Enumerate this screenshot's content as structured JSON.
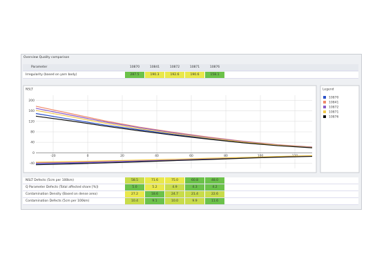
{
  "window": {
    "title": "Overview Quality comparison"
  },
  "top_table": {
    "header": [
      "Parameter",
      "10870",
      "10841",
      "10872",
      "10871",
      "10876"
    ],
    "rows": [
      {
        "label": "Irregularity (based on yarn body)",
        "cells": [
          "287.5",
          "190.3",
          "192.6",
          "190.6",
          "158.1"
        ],
        "colors": [
          "#6cc24a",
          "#e9e84c",
          "#e9e84c",
          "#e9e84c",
          "#6cc24a"
        ]
      }
    ]
  },
  "chart": {
    "type": "line",
    "title": "NSLT",
    "legend_title": "Legend",
    "x": [
      -30,
      -10,
      10,
      30,
      50,
      70,
      90,
      110,
      130
    ],
    "xlim": [
      -30,
      130
    ],
    "xticks": [
      -20,
      0,
      20,
      40,
      60,
      80,
      100,
      120
    ],
    "ylim": [
      -60,
      220
    ],
    "yticks": [
      -40,
      0,
      40,
      80,
      120,
      160,
      200
    ],
    "grid": true,
    "series": [
      {
        "name": "10870",
        "color": "#2a50c8",
        "upper": [
          150,
          128,
          106,
          88,
          70,
          54,
          40,
          28,
          20
        ],
        "lower": [
          -42,
          -40,
          -36,
          -32,
          -28,
          -24,
          -20,
          -16,
          -13
        ]
      },
      {
        "name": "10841",
        "color": "#f08a6a",
        "upper": [
          178,
          150,
          122,
          98,
          78,
          60,
          44,
          31,
          22
        ],
        "lower": [
          -38,
          -36,
          -33,
          -30,
          -26,
          -22,
          -19,
          -15,
          -12
        ]
      },
      {
        "name": "10872",
        "color": "#8a5cc8",
        "upper": [
          170,
          144,
          118,
          96,
          76,
          58,
          43,
          30,
          21
        ],
        "lower": [
          -40,
          -38,
          -35,
          -31,
          -27,
          -23,
          -19,
          -16,
          -12
        ]
      },
      {
        "name": "10871",
        "color": "#f2c84a",
        "upper": [
          162,
          138,
          113,
          92,
          73,
          56,
          41,
          29,
          20
        ],
        "lower": [
          -36,
          -34,
          -31,
          -28,
          -25,
          -21,
          -18,
          -14,
          -11
        ]
      },
      {
        "name": "10876",
        "color": "#111111",
        "upper": [
          140,
          122,
          102,
          84,
          67,
          52,
          38,
          27,
          19
        ],
        "lower": [
          -46,
          -43,
          -39,
          -35,
          -30,
          -26,
          -21,
          -17,
          -14
        ]
      }
    ]
  },
  "bottom_table": {
    "rows": [
      {
        "label": "NSLT Defects (5cm per 100km)",
        "cells": [
          "58.5",
          "71.6",
          "75.0",
          "60.8",
          "48.0"
        ],
        "colors": [
          "#c8dc4a",
          "#e9e84c",
          "#e9e84c",
          "#6cc24a",
          "#6cc24a"
        ]
      },
      {
        "label": "Q Parameter Defects (Total affected share [%])",
        "cells": [
          "5.0",
          "5.2",
          "4.9",
          "4.3",
          "4.2"
        ],
        "colors": [
          "#6cc24a",
          "#e9e84c",
          "#c8dc4a",
          "#6cc24a",
          "#6cc24a"
        ]
      },
      {
        "label": "Contamination Density (Based on dense area)",
        "cells": [
          "27.2",
          "18.6",
          "24.7",
          "21.4",
          "22.6"
        ],
        "colors": [
          "#e9e84c",
          "#6cc24a",
          "#c8dc4a",
          "#c8dc4a",
          "#c8dc4a"
        ]
      },
      {
        "label": "Contamination Defects (5cm per 100km)",
        "cells": [
          "10.4",
          "9.1",
          "10.0",
          "9.9",
          "11.6"
        ],
        "colors": [
          "#c8dc4a",
          "#6cc24a",
          "#c8dc4a",
          "#c8dc4a",
          "#6cc24a"
        ]
      }
    ]
  }
}
